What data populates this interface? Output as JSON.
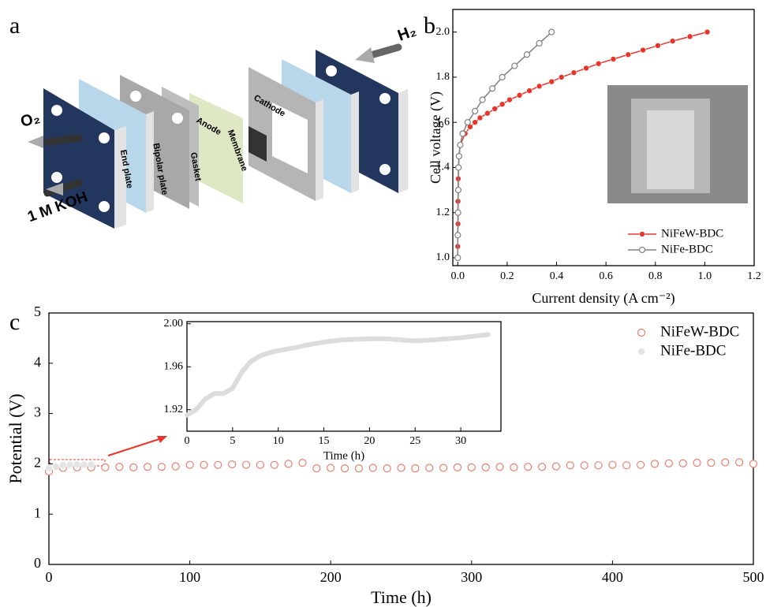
{
  "panel_labels": [
    "a",
    "b",
    "c"
  ],
  "diagram": {
    "oxygen": "O₂",
    "inlet": "1 M KOH",
    "hydrogen": "H₂",
    "layers": [
      "End plate",
      "Bipolar plate",
      "Gasket",
      "Anode",
      "Membrane",
      "Cathode"
    ]
  },
  "chart_data": [
    {
      "type": "line",
      "x_label": "Current density (A cm⁻²)",
      "y_label": "Cell voltage (V)",
      "xlim": [
        -0.02,
        1.2
      ],
      "ylim": [
        0.965,
        2.1
      ],
      "xticks": [
        {
          "value": 0,
          "label": "0.0"
        },
        0.2,
        0.4,
        0.6,
        0.8,
        {
          "value": 1,
          "label": "1.0"
        },
        1.2
      ],
      "yticks": [
        {
          "value": 1,
          "label": "1.0"
        },
        1.2,
        1.4,
        1.6,
        1.8,
        {
          "value": 2,
          "label": "2.0"
        }
      ],
      "legend": "lower right",
      "series": [
        {
          "name": "NiFeW-BDC",
          "color": "#e8352b",
          "marker": "filled",
          "x": [
            0,
            0,
            0,
            0.001,
            0.001,
            0.001,
            0.002,
            0.002,
            0.003,
            0.005,
            0.01,
            0.03,
            0.05,
            0.07,
            0.09,
            0.12,
            0.15,
            0.18,
            0.21,
            0.25,
            0.29,
            0.33,
            0.38,
            0.42,
            0.47,
            0.52,
            0.57,
            0.63,
            0.69,
            0.75,
            0.81,
            0.87,
            0.94,
            1.01
          ],
          "values": [
            1.0,
            1.05,
            1.1,
            1.15,
            1.2,
            1.25,
            1.3,
            1.35,
            1.4,
            1.45,
            1.5,
            1.55,
            1.58,
            1.6,
            1.62,
            1.64,
            1.66,
            1.68,
            1.7,
            1.72,
            1.74,
            1.76,
            1.78,
            1.8,
            1.82,
            1.84,
            1.86,
            1.88,
            1.9,
            1.92,
            1.94,
            1.96,
            1.98,
            2.0
          ]
        },
        {
          "name": "NiFe-BDC",
          "color": "#808080",
          "marker": "open",
          "x": [
            0,
            0,
            0.001,
            0.002,
            0.003,
            0.005,
            0.01,
            0.02,
            0.04,
            0.07,
            0.1,
            0.14,
            0.18,
            0.23,
            0.28,
            0.33,
            0.38
          ],
          "values": [
            1.0,
            1.1,
            1.2,
            1.3,
            1.4,
            1.45,
            1.5,
            1.55,
            1.6,
            1.65,
            1.7,
            1.75,
            1.8,
            1.85,
            1.9,
            1.95,
            2.0
          ]
        }
      ]
    },
    {
      "type": "scatter",
      "x_label": "Time (h)",
      "y_label": "Potential (V)",
      "xlim": [
        0,
        500
      ],
      "ylim": [
        0,
        5
      ],
      "xticks": [
        0,
        100,
        200,
        300,
        400,
        500
      ],
      "yticks": [
        0,
        1,
        2,
        3,
        4,
        5
      ],
      "legend": "upper right",
      "series": [
        {
          "name": "NiFeW-BDC",
          "color": "#e8806e",
          "marker": "open",
          "x": [
            0,
            10,
            20,
            30,
            40,
            50,
            60,
            70,
            80,
            90,
            100,
            110,
            120,
            130,
            140,
            150,
            160,
            170,
            180,
            190,
            200,
            210,
            220,
            230,
            240,
            250,
            260,
            270,
            280,
            290,
            300,
            310,
            320,
            330,
            340,
            350,
            360,
            370,
            380,
            390,
            400,
            410,
            420,
            430,
            440,
            450,
            460,
            470,
            480,
            490,
            500
          ],
          "values": [
            1.85,
            1.92,
            1.93,
            1.93,
            1.93,
            1.94,
            1.93,
            1.94,
            1.94,
            1.95,
            1.98,
            1.98,
            1.98,
            1.99,
            1.98,
            1.98,
            1.98,
            2.0,
            2.02,
            1.91,
            1.92,
            1.91,
            1.91,
            1.92,
            1.91,
            1.92,
            1.91,
            1.92,
            1.92,
            1.93,
            1.93,
            1.93,
            1.94,
            1.93,
            1.94,
            1.94,
            1.95,
            1.97,
            1.97,
            1.97,
            1.98,
            1.97,
            1.98,
            2.0,
            2.01,
            2.01,
            2.02,
            2.02,
            2.03,
            2.03,
            2.0
          ]
        },
        {
          "name": "NiFe-BDC",
          "color": "#e4e4e4",
          "marker": "filled",
          "x": [
            0,
            5,
            10,
            15,
            20,
            25,
            30
          ],
          "values": [
            1.915,
            1.94,
            1.975,
            1.983,
            1.986,
            1.984,
            1.987
          ]
        }
      ]
    },
    {
      "type": "line",
      "x_label": "Time (h)",
      "xlim": [
        0,
        34.4
      ],
      "ylim": [
        1.9,
        2.002
      ],
      "xticks": [
        0,
        5,
        10,
        15,
        20,
        25,
        30
      ],
      "yticks": [
        1.92,
        1.96,
        {
          "value": 2,
          "label": "2.00"
        }
      ],
      "series": [
        {
          "color": "#dcdcdc",
          "marker": "none",
          "x": [
            0,
            1,
            2,
            3,
            4,
            5,
            6,
            7,
            8,
            9,
            10,
            12,
            13,
            15,
            17,
            20,
            22,
            25,
            27,
            30,
            33
          ],
          "values": [
            1.915,
            1.92,
            1.93,
            1.935,
            1.935,
            1.94,
            1.955,
            1.965,
            1.97,
            1.973,
            1.975,
            1.978,
            1.98,
            1.983,
            1.985,
            1.986,
            1.986,
            1.984,
            1.985,
            1.987,
            1.99
          ]
        }
      ]
    }
  ]
}
